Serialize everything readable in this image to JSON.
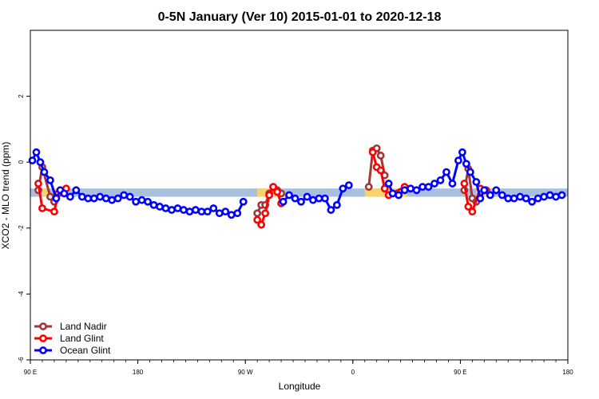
{
  "chart_data": {
    "type": "line",
    "title": "0-5N January (Ver 10)   2015-01-01 to 2020-12-18",
    "xlabel": "Longitude",
    "ylabel": "XCO2 - MLO trend (ppm)",
    "xlim": [
      -90,
      180
    ],
    "ylim": [
      -6,
      4
    ],
    "x_ticks": [
      {
        "value": -90,
        "label": "90 E"
      },
      {
        "value": -36,
        "label": "180"
      },
      {
        "value": 18,
        "label": "90 W"
      },
      {
        "value": 72,
        "label": "0"
      },
      {
        "value": 126,
        "label": "90 E"
      },
      {
        "value": 180,
        "label": "180"
      }
    ],
    "y_ticks": [
      -6,
      -4,
      -2,
      0,
      2
    ],
    "grid": false,
    "legend_position": "bottom-left",
    "bands": [
      {
        "color": "#a8bfdf",
        "y_range": [
          -1.05,
          -0.8
        ],
        "x_range": [
          -90,
          180
        ]
      },
      {
        "color": "#f7d36b",
        "y_range": [
          -1.05,
          -0.8
        ],
        "x_range": [
          -84,
          -81
        ]
      },
      {
        "color": "#f7d36b",
        "y_range": [
          -1.05,
          -0.8
        ],
        "x_range": [
          -78,
          -74
        ]
      },
      {
        "color": "#f7d36b",
        "y_range": [
          -1.05,
          -0.8
        ],
        "x_range": [
          24,
          36
        ]
      },
      {
        "color": "#f7d36b",
        "y_range": [
          -1.05,
          -0.8
        ],
        "x_range": [
          78,
          99
        ]
      },
      {
        "color": "#f7d36b",
        "y_range": [
          -1.05,
          -0.8
        ],
        "x_range": [
          134,
          139
        ]
      }
    ],
    "series": [
      {
        "name": "Land Nadir",
        "color": "#a33535",
        "segments": [
          [
            [
              -86,
              -0.85
            ],
            [
              -84,
              -0.15
            ],
            [
              -80,
              -1.05
            ],
            [
              -78,
              -1.2
            ]
          ],
          [
            [
              24,
              -1.55
            ],
            [
              26,
              -1.3
            ],
            [
              28,
              -1.3
            ],
            [
              30,
              -0.95
            ],
            [
              32,
              -0.75
            ],
            [
              34,
              -0.85
            ],
            [
              36,
              -0.95
            ]
          ],
          [
            [
              80,
              -0.75
            ],
            [
              82,
              0.35
            ],
            [
              84,
              0.42
            ],
            [
              86,
              0.2
            ],
            [
              88,
              -0.4
            ]
          ],
          [
            [
              128,
              -0.85
            ],
            [
              130,
              -0.2
            ],
            [
              132,
              -1.1
            ],
            [
              134,
              -1.2
            ]
          ]
        ]
      },
      {
        "name": "Land Glint",
        "color": "#ff0000",
        "segments": [
          [
            [
              -86,
              -0.65
            ],
            [
              -84,
              -1.4
            ],
            [
              -78,
              -1.5
            ],
            [
              -76,
              -0.95
            ],
            [
              -72,
              -0.8
            ]
          ],
          [
            [
              24,
              -1.75
            ],
            [
              26,
              -1.9
            ],
            [
              28,
              -1.55
            ],
            [
              30,
              -1.0
            ],
            [
              32,
              -0.75
            ],
            [
              34,
              -0.9
            ],
            [
              36,
              -1.25
            ]
          ],
          [
            [
              82,
              0.3
            ],
            [
              84,
              -0.15
            ],
            [
              86,
              -0.25
            ],
            [
              88,
              -0.8
            ],
            [
              90,
              -1.0
            ],
            [
              98,
              -0.75
            ]
          ],
          [
            [
              128,
              -0.65
            ],
            [
              130,
              -1.35
            ]
          ],
          [
            [
              132,
              -1.5
            ],
            [
              136,
              -0.8
            ],
            [
              139,
              -0.85
            ]
          ]
        ]
      },
      {
        "name": "Ocean Glint",
        "color": "#0000ff",
        "segments": [
          [
            [
              -89,
              0.05
            ],
            [
              -87,
              0.3
            ],
            [
              -85,
              0.0
            ],
            [
              -83,
              -0.3
            ],
            [
              -80,
              -0.55
            ],
            [
              -77,
              -1.1
            ],
            [
              -75,
              -0.85
            ],
            [
              -73,
              -0.95
            ],
            [
              -70,
              -1.05
            ],
            [
              -67,
              -0.85
            ],
            [
              -64,
              -1.05
            ],
            [
              -61,
              -1.1
            ],
            [
              -58,
              -1.1
            ],
            [
              -55,
              -1.05
            ],
            [
              -52,
              -1.1
            ],
            [
              -49,
              -1.15
            ],
            [
              -46,
              -1.1
            ],
            [
              -43,
              -1.0
            ],
            [
              -40,
              -1.05
            ],
            [
              -37,
              -1.2
            ],
            [
              -34,
              -1.15
            ],
            [
              -31,
              -1.2
            ],
            [
              -28,
              -1.3
            ],
            [
              -25,
              -1.35
            ],
            [
              -22,
              -1.4
            ],
            [
              -19,
              -1.45
            ],
            [
              -16,
              -1.4
            ],
            [
              -13,
              -1.45
            ],
            [
              -10,
              -1.5
            ],
            [
              -7,
              -1.45
            ],
            [
              -4,
              -1.5
            ],
            [
              -1,
              -1.5
            ],
            [
              2,
              -1.4
            ],
            [
              5,
              -1.55
            ],
            [
              8,
              -1.5
            ],
            [
              11,
              -1.6
            ],
            [
              14,
              -1.55
            ],
            [
              17,
              -1.2
            ]
          ],
          [
            [
              37,
              -1.2
            ],
            [
              40,
              -1.0
            ],
            [
              43,
              -1.1
            ],
            [
              46,
              -1.2
            ],
            [
              49,
              -1.05
            ],
            [
              52,
              -1.15
            ],
            [
              55,
              -1.1
            ],
            [
              58,
              -1.1
            ],
            [
              61,
              -1.45
            ],
            [
              64,
              -1.3
            ],
            [
              67,
              -0.8
            ],
            [
              70,
              -0.7
            ]
          ],
          [
            [
              90,
              -0.65
            ],
            [
              92,
              -0.95
            ],
            [
              95,
              -1.0
            ],
            [
              98,
              -0.85
            ],
            [
              101,
              -0.8
            ],
            [
              104,
              -0.85
            ],
            [
              107,
              -0.75
            ],
            [
              110,
              -0.75
            ],
            [
              113,
              -0.65
            ],
            [
              116,
              -0.55
            ],
            [
              119,
              -0.3
            ],
            [
              122,
              -0.65
            ],
            [
              125,
              0.05
            ],
            [
              127,
              0.3
            ],
            [
              129,
              -0.05
            ],
            [
              131,
              -0.3
            ],
            [
              134,
              -0.6
            ],
            [
              136,
              -1.1
            ],
            [
              138,
              -0.85
            ],
            [
              141,
              -1.0
            ],
            [
              144,
              -0.85
            ],
            [
              147,
              -1.0
            ],
            [
              150,
              -1.1
            ],
            [
              153,
              -1.1
            ],
            [
              156,
              -1.05
            ],
            [
              159,
              -1.1
            ],
            [
              162,
              -1.2
            ],
            [
              165,
              -1.1
            ],
            [
              168,
              -1.05
            ],
            [
              171,
              -1.0
            ],
            [
              174,
              -1.05
            ],
            [
              177,
              -1.0
            ]
          ]
        ]
      }
    ]
  }
}
